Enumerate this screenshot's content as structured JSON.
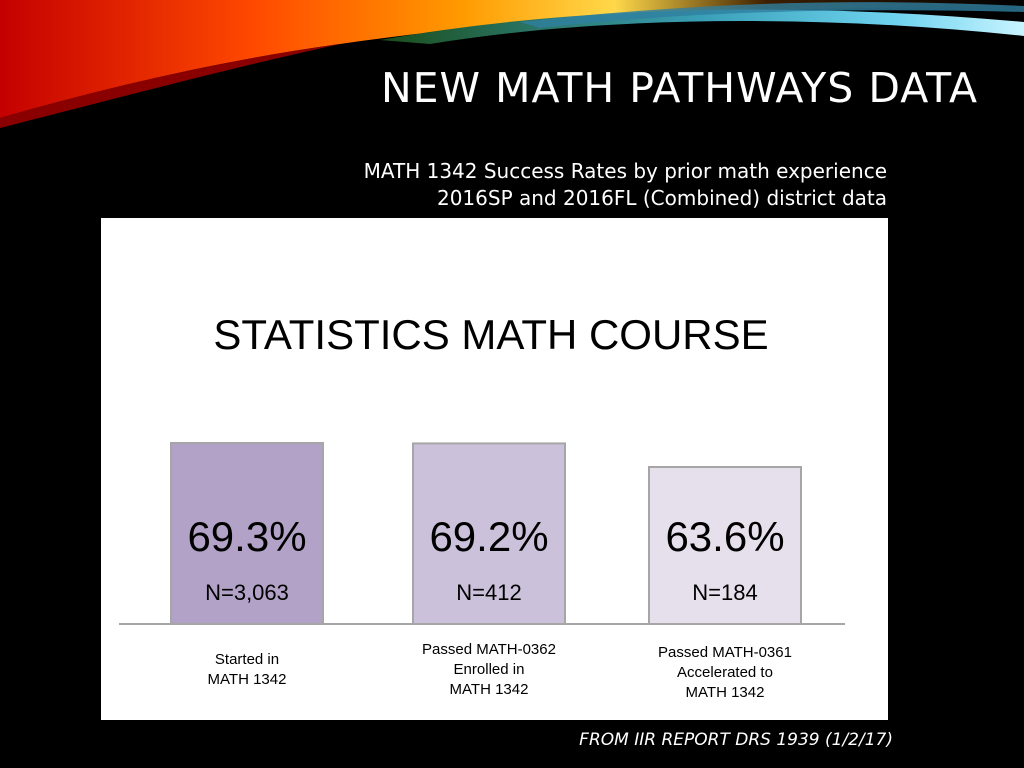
{
  "slide": {
    "title": "NEW MATH PATHWAYS DATA",
    "subtitle_line1": "MATH 1342 Success Rates by prior math experience",
    "subtitle_line2": "2016SP and 2016FL (Combined) district data",
    "source": "FROM IIR REPORT DRS 1939 (1/2/17)"
  },
  "chart_data": {
    "type": "bar",
    "title": "STATISTICS MATH COURSE",
    "categories": [
      [
        "Started in",
        "MATH 1342"
      ],
      [
        "Passed MATH-0362",
        "Enrolled in",
        "MATH 1342"
      ],
      [
        "Passed MATH-0361",
        "Accelerated to",
        "MATH 1342"
      ]
    ],
    "values": [
      69.3,
      69.2,
      63.6
    ],
    "value_labels": [
      "69.3%",
      "69.2%",
      "63.6%"
    ],
    "n_labels": [
      "N=3,063",
      "N=412",
      "N=184"
    ],
    "bar_colors": [
      "#b3a2c7",
      "#ccc1da",
      "#e5e0ec"
    ],
    "bar_stroke": "#a6a6a6",
    "ylim": [
      0,
      100
    ],
    "grid": false
  }
}
